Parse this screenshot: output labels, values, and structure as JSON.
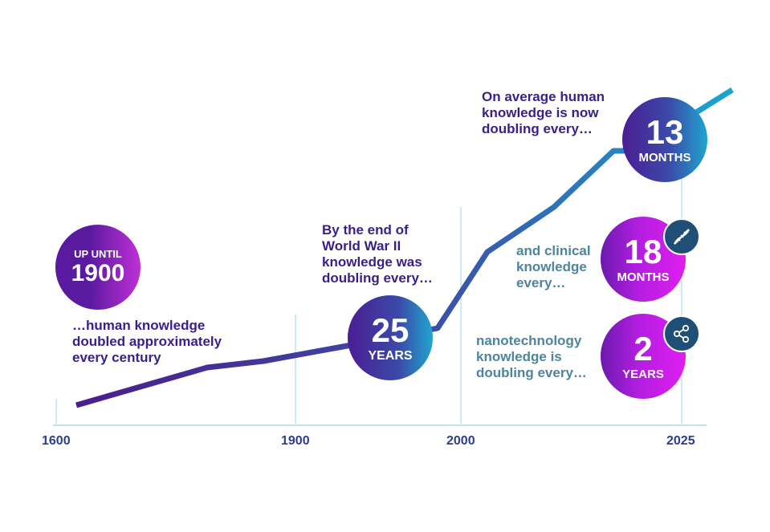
{
  "axis": {
    "ticks": [
      "1600",
      "1900",
      "2000",
      "2025"
    ]
  },
  "circles": {
    "c1900": {
      "top": "UP UNTIL",
      "big": "1900"
    },
    "c25": {
      "big": "25",
      "small": "YEARS"
    },
    "c13": {
      "big": "13",
      "small": "MONTHS"
    },
    "c18": {
      "big": "18",
      "small": "MONTHS"
    },
    "c2": {
      "big": "2",
      "small": "YEARS"
    }
  },
  "texts": {
    "century": [
      "…human knowledge",
      "doubled approximately",
      "every century"
    ],
    "ww2": [
      "By the end of",
      "World War II",
      "knowledge was",
      "doubling every…"
    ],
    "average": [
      "On average human",
      "knowledge is now",
      "doubling every…"
    ],
    "clinical": [
      "and clinical",
      "knowledge",
      "every…"
    ],
    "nano": [
      "nanotechnology",
      "knowledge is",
      "doubling every…"
    ]
  },
  "icons": {
    "clinical_badge": "dna-icon",
    "nano_badge": "share-network-icon"
  },
  "colors": {
    "line_start": "#4b1d8e",
    "line_end": "#1aa6cf",
    "dark_text": "#3a1f8a",
    "teal_text": "#4a86a0",
    "magenta": "#d41ee6",
    "violet": "#5a1aa0",
    "badge": "#1f4f76"
  }
}
